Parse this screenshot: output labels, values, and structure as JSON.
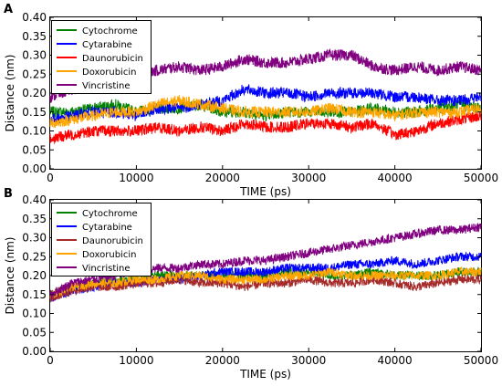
{
  "chart_data": [
    {
      "panel": "A",
      "type": "line",
      "title": "",
      "xlabel": "TIME (ps)",
      "ylabel": "Distance (nm)",
      "xlim": [
        0,
        50000
      ],
      "ylim": [
        0.0,
        0.4
      ],
      "x_ticks": [
        "0",
        "10000",
        "20000",
        "30000",
        "40000",
        "50000"
      ],
      "y_ticks": [
        "0.00",
        "0.05",
        "0.10",
        "0.15",
        "0.20",
        "0.25",
        "0.30",
        "0.35",
        "0.40"
      ],
      "grid": false,
      "legend_position": "top-left",
      "x": [
        0,
        2500,
        5000,
        7500,
        10000,
        12500,
        15000,
        17500,
        20000,
        22500,
        25000,
        27500,
        30000,
        32500,
        35000,
        37500,
        40000,
        42500,
        45000,
        47500,
        50000
      ],
      "series": [
        {
          "name": "Cytochrome",
          "color": "#008000",
          "values": [
            0.15,
            0.15,
            0.16,
            0.17,
            0.15,
            0.16,
            0.16,
            0.17,
            0.15,
            0.15,
            0.14,
            0.15,
            0.15,
            0.15,
            0.15,
            0.16,
            0.15,
            0.15,
            0.16,
            0.17,
            0.16
          ],
          "noise": 0.015
        },
        {
          "name": "Cytarabine",
          "color": "#0000ff",
          "values": [
            0.13,
            0.14,
            0.15,
            0.15,
            0.14,
            0.16,
            0.16,
            0.17,
            0.18,
            0.21,
            0.2,
            0.2,
            0.19,
            0.2,
            0.2,
            0.2,
            0.19,
            0.19,
            0.18,
            0.18,
            0.19
          ],
          "noise": 0.015
        },
        {
          "name": "Daunorubicin",
          "color": "#ff0000",
          "values": [
            0.08,
            0.09,
            0.1,
            0.1,
            0.1,
            0.11,
            0.1,
            0.11,
            0.1,
            0.12,
            0.11,
            0.11,
            0.12,
            0.12,
            0.11,
            0.12,
            0.09,
            0.1,
            0.12,
            0.13,
            0.14
          ],
          "noise": 0.015
        },
        {
          "name": "Doxorubicin",
          "color": "#ffa500",
          "values": [
            0.12,
            0.13,
            0.14,
            0.15,
            0.15,
            0.17,
            0.18,
            0.17,
            0.16,
            0.15,
            0.15,
            0.15,
            0.15,
            0.16,
            0.15,
            0.15,
            0.14,
            0.15,
            0.15,
            0.15,
            0.16
          ],
          "noise": 0.015
        },
        {
          "name": "Vincristine",
          "color": "#800080",
          "values": [
            0.19,
            0.21,
            0.22,
            0.24,
            0.25,
            0.26,
            0.27,
            0.26,
            0.27,
            0.29,
            0.28,
            0.28,
            0.29,
            0.3,
            0.3,
            0.27,
            0.26,
            0.27,
            0.26,
            0.27,
            0.26
          ],
          "noise": 0.015
        }
      ]
    },
    {
      "panel": "B",
      "type": "line",
      "title": "",
      "xlabel": "TIME (ps)",
      "ylabel": "Distance (nm)",
      "xlim": [
        0,
        50000
      ],
      "ylim": [
        0.0,
        0.4
      ],
      "x_ticks": [
        "0",
        "10000",
        "20000",
        "30000",
        "40000",
        "50000"
      ],
      "y_ticks": [
        "0.00",
        "0.05",
        "0.10",
        "0.15",
        "0.20",
        "0.25",
        "0.30",
        "0.35",
        "0.40"
      ],
      "grid": false,
      "legend_position": "top-left",
      "x": [
        0,
        2500,
        5000,
        7500,
        10000,
        12500,
        15000,
        17500,
        20000,
        22500,
        25000,
        27500,
        30000,
        32500,
        35000,
        37500,
        40000,
        42500,
        45000,
        47500,
        50000
      ],
      "series": [
        {
          "name": "Cytochrome",
          "color": "#008000",
          "values": [
            0.15,
            0.17,
            0.18,
            0.19,
            0.19,
            0.2,
            0.2,
            0.2,
            0.2,
            0.2,
            0.2,
            0.21,
            0.21,
            0.2,
            0.2,
            0.21,
            0.2,
            0.2,
            0.2,
            0.21,
            0.21
          ],
          "noise": 0.012
        },
        {
          "name": "Cytarabine",
          "color": "#0000ff",
          "values": [
            0.14,
            0.16,
            0.17,
            0.18,
            0.18,
            0.19,
            0.19,
            0.2,
            0.21,
            0.21,
            0.21,
            0.22,
            0.22,
            0.22,
            0.23,
            0.23,
            0.24,
            0.23,
            0.24,
            0.25,
            0.25
          ],
          "noise": 0.012
        },
        {
          "name": "Daunorubicin",
          "color": "#a52a2a",
          "values": [
            0.14,
            0.16,
            0.17,
            0.17,
            0.18,
            0.18,
            0.19,
            0.18,
            0.18,
            0.17,
            0.18,
            0.18,
            0.19,
            0.18,
            0.18,
            0.19,
            0.18,
            0.17,
            0.18,
            0.19,
            0.19
          ],
          "noise": 0.012
        },
        {
          "name": "Doxorubicin",
          "color": "#ffa500",
          "values": [
            0.15,
            0.17,
            0.18,
            0.18,
            0.19,
            0.19,
            0.2,
            0.2,
            0.19,
            0.19,
            0.19,
            0.2,
            0.2,
            0.21,
            0.2,
            0.2,
            0.2,
            0.2,
            0.2,
            0.21,
            0.21
          ],
          "noise": 0.012
        },
        {
          "name": "Vincristine",
          "color": "#800080",
          "values": [
            0.15,
            0.18,
            0.19,
            0.2,
            0.21,
            0.22,
            0.22,
            0.23,
            0.23,
            0.24,
            0.24,
            0.25,
            0.26,
            0.27,
            0.28,
            0.29,
            0.3,
            0.31,
            0.32,
            0.32,
            0.33
          ],
          "noise": 0.012
        }
      ]
    }
  ]
}
